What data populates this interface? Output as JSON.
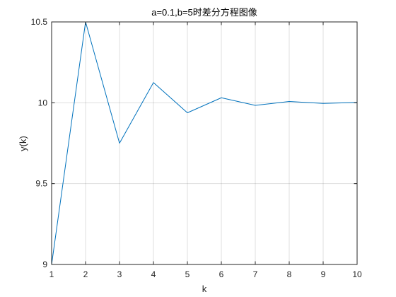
{
  "chart_data": {
    "type": "line",
    "title": "a=0.1,b=5时差分方程图像",
    "xlabel": "k",
    "ylabel": "y(k)",
    "x": [
      1,
      2,
      3,
      4,
      5,
      6,
      7,
      8,
      9,
      10
    ],
    "series": [
      {
        "values": [
          9,
          10.5,
          9.75,
          10.125,
          9.938,
          10.031,
          9.984,
          10.008,
          9.996,
          10.002
        ],
        "color": "#0072BD"
      }
    ],
    "xlim": [
      1,
      10
    ],
    "ylim": [
      9,
      10.5
    ],
    "xticks": [
      1,
      2,
      3,
      4,
      5,
      6,
      7,
      8,
      9,
      10
    ],
    "xtick_labels": [
      "1",
      "2",
      "3",
      "4",
      "5",
      "6",
      "7",
      "8",
      "9",
      "10"
    ],
    "yticks": [
      9,
      9.5,
      10,
      10.5
    ],
    "ytick_labels": [
      "9",
      "9.5",
      "10",
      "10.5"
    ],
    "grid": true,
    "box": true
  },
  "colors": {
    "axes": "#262626",
    "grid": "#262626",
    "background": "#ffffff"
  }
}
